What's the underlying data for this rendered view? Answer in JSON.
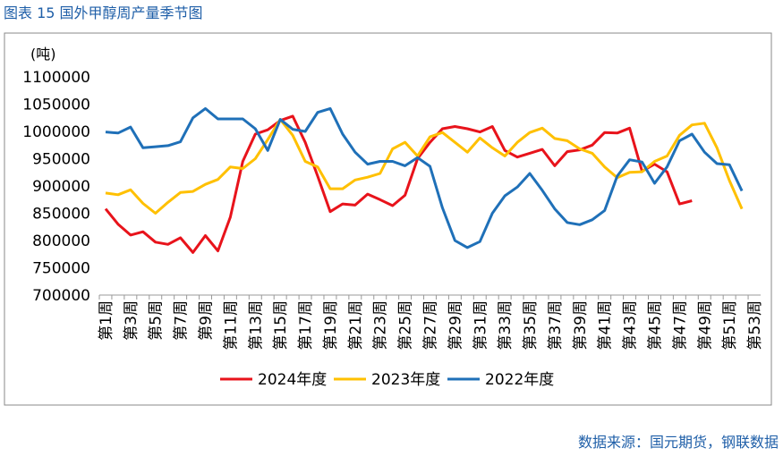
{
  "chart_data": {
    "type": "line",
    "title": "图表 15  国外甲醇周产量季节图",
    "y_label": "(吨)",
    "source": "数据来源：国元期货，钢联数据",
    "categories": [
      "第1周",
      null,
      "第3周",
      null,
      "第5周",
      null,
      "第7周",
      null,
      "第9周",
      null,
      "第11周",
      null,
      "第13周",
      null,
      "第15周",
      null,
      "第17周",
      null,
      "第19周",
      null,
      "第21周",
      null,
      "第23周",
      null,
      "第25周",
      null,
      "第27周",
      null,
      "第29周",
      null,
      "第31周",
      null,
      "第33周",
      null,
      "第35周",
      null,
      "第37周",
      null,
      "第39周",
      null,
      "第41周",
      null,
      "第43周",
      null,
      "第45周",
      null,
      "第47周",
      null,
      "第49周",
      null,
      "第51周",
      null,
      "第53周"
    ],
    "series": [
      {
        "name": "2024年度",
        "color": "#e8131b",
        "values": [
          858000,
          830000,
          810000,
          816000,
          797000,
          793000,
          805000,
          778000,
          809000,
          781000,
          843000,
          945000,
          995000,
          1003000,
          1020000,
          1028000,
          980000,
          918000,
          853000,
          867000,
          865000,
          885000,
          875000,
          864000,
          883000,
          950000,
          980000,
          1005000,
          1009000,
          1005000,
          999000,
          1009000,
          965000,
          953000,
          960000,
          967000,
          937000,
          963000,
          966000,
          975000,
          998000,
          997000,
          1006000,
          927000,
          940000,
          926000,
          867000,
          873000,
          null,
          null,
          null,
          null,
          null
        ]
      },
      {
        "name": "2023年度",
        "color": "#ffc000",
        "values": [
          887000,
          884000,
          893000,
          868000,
          850000,
          870000,
          888000,
          890000,
          903000,
          912000,
          935000,
          932000,
          950000,
          985000,
          1022000,
          993000,
          945000,
          935000,
          895000,
          895000,
          911000,
          916000,
          923000,
          968000,
          980000,
          955000,
          990000,
          998000,
          980000,
          962000,
          988000,
          970000,
          955000,
          980000,
          998000,
          1006000,
          987000,
          983000,
          968000,
          960000,
          935000,
          915000,
          925000,
          926000,
          945000,
          955000,
          993000,
          1012000,
          1015000,
          970000,
          910000,
          858000,
          null
        ]
      },
      {
        "name": "2022年度",
        "color": "#1f70b8",
        "values": [
          999000,
          997000,
          1008000,
          970000,
          972000,
          974000,
          981000,
          1025000,
          1042000,
          1023000,
          1023000,
          1023000,
          1005000,
          965000,
          1022000,
          1004000,
          1000000,
          1035000,
          1042000,
          995000,
          962000,
          940000,
          945000,
          945000,
          937000,
          952000,
          936000,
          860000,
          800000,
          787000,
          798000,
          850000,
          882000,
          898000,
          923000,
          892000,
          858000,
          833000,
          829000,
          838000,
          855000,
          918000,
          948000,
          944000,
          905000,
          935000,
          983000,
          995000,
          962000,
          941000,
          939000,
          891000,
          null
        ]
      }
    ],
    "ylim": [
      700000,
      1100000
    ],
    "yticks": [
      700000,
      750000,
      800000,
      850000,
      900000,
      950000,
      1000000,
      1050000,
      1100000
    ],
    "grid": false,
    "legend": "bottom"
  }
}
